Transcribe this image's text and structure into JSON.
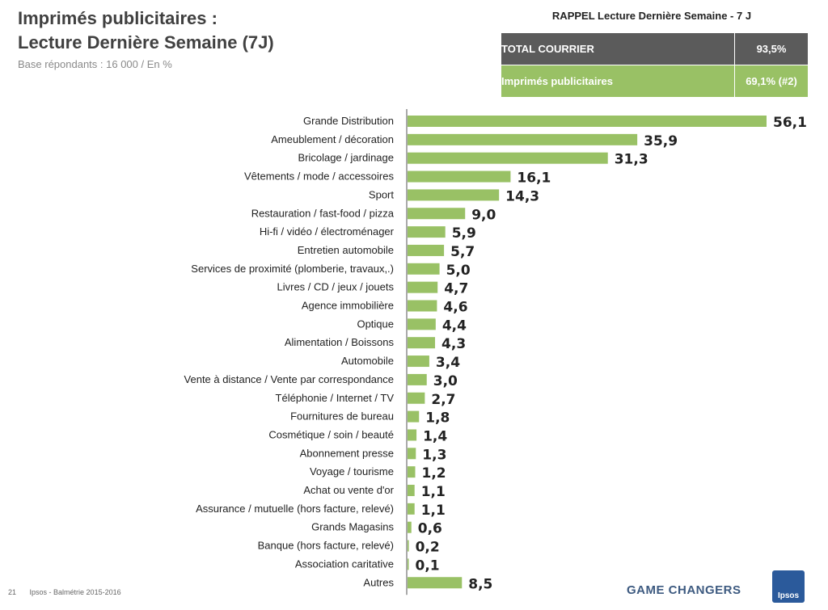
{
  "header": {
    "title_line1": "Imprimés publicitaires :",
    "title_line2": "Lecture Dernière Semaine (7J)",
    "subtitle": "Base  répondants : 16 000 / En %"
  },
  "recall": {
    "title": "RAPPEL   Lecture Dernière Semaine  - 7 J",
    "rows": [
      {
        "label": "TOTAL COURRIER",
        "value": "93,5%"
      },
      {
        "label": "Imprimés publicitaires",
        "value": "69,1% (#2)"
      }
    ]
  },
  "footer": {
    "page_number": "21",
    "source": "Ipsos - Balmétrie 2015-2016",
    "tagline": "GAME CHANGERS",
    "logo_text": "Ipsos"
  },
  "colors": {
    "bar": "#99c165",
    "dark_row": "#5b5b5b",
    "green_row": "#99c165",
    "logo": "#2b5a9b"
  },
  "chart_data": {
    "type": "bar",
    "orientation": "horizontal",
    "categories": [
      "Grande Distribution",
      "Ameublement / décoration",
      "Bricolage / jardinage",
      "Vêtements / mode / accessoires",
      "Sport",
      "Restauration / fast-food / pizza",
      "Hi-fi / vidéo / électroménager",
      "Entretien automobile",
      "Services de proximité (plomberie, travaux,.)",
      "Livres / CD / jeux / jouets",
      "Agence immobilière",
      "Optique",
      "Alimentation / Boissons",
      "Automobile",
      "Vente à distance / Vente par correspondance",
      "Téléphonie / Internet / TV",
      "Fournitures de bureau",
      "Cosmétique / soin / beauté",
      "Abonnement presse",
      "Voyage / tourisme",
      "Achat ou vente d'or",
      "Assurance / mutuelle (hors facture, relevé)",
      "Grands Magasins",
      "Banque (hors facture, relevé)",
      "Association caritative",
      "Autres"
    ],
    "values": [
      56.1,
      35.9,
      31.3,
      16.1,
      14.3,
      9.0,
      5.9,
      5.7,
      5.0,
      4.7,
      4.6,
      4.4,
      4.3,
      3.4,
      3.0,
      2.7,
      1.8,
      1.4,
      1.3,
      1.2,
      1.1,
      1.1,
      0.6,
      0.2,
      0.1,
      8.5
    ],
    "value_labels": [
      "56,1",
      "35,9",
      "31,3",
      "16,1",
      "14,3",
      "9,0",
      "5,9",
      "5,7",
      "5,0",
      "4,7",
      "4,6",
      "4,4",
      "4,3",
      "3,4",
      "3,0",
      "2,7",
      "1,8",
      "1,4",
      "1,3",
      "1,2",
      "1,1",
      "1,1",
      "0,6",
      "0,2",
      "0,1",
      "8,5"
    ],
    "xlim": [
      0,
      56.1
    ],
    "grid": false
  }
}
